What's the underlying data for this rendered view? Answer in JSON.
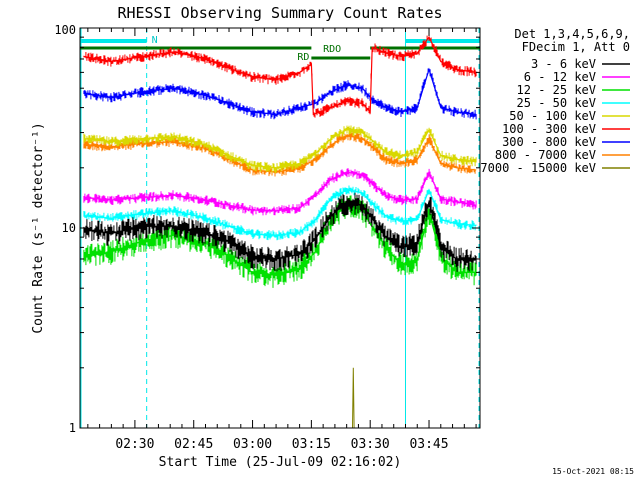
{
  "chart_data": {
    "type": "line",
    "title": "RHESSI Observing Summary Count Rates",
    "xlabel": "Start Time (25-Jul-09 02:16:02)",
    "ylabel": "Count Rate (s⁻¹ detector⁻¹)",
    "y_scale": "log",
    "ylim": [
      1,
      100
    ],
    "xlim_minutes": [
      0,
      102
    ],
    "x_ticks": [
      "02:30",
      "02:45",
      "03:00",
      "03:15",
      "03:30",
      "03:45"
    ],
    "x_tick_minutes": [
      14,
      29,
      44,
      59,
      74,
      89
    ],
    "y_ticks": [
      "1",
      "10",
      "100"
    ],
    "y_tick_values": [
      1,
      10,
      100
    ],
    "grid": false,
    "legend": {
      "placement": "right",
      "header": [
        "Det 1,3,4,5,6,9,",
        "FDecim 1, Att 0"
      ],
      "entries": [
        {
          "label": "3 - 6 keV",
          "color": "#000000"
        },
        {
          "label": "6 - 12 keV",
          "color": "#ff00ff"
        },
        {
          "label": "12 - 25 keV",
          "color": "#00e000"
        },
        {
          "label": "25 - 50 keV",
          "color": "#00ffff"
        },
        {
          "label": "50 - 100 keV",
          "color": "#d8d800"
        },
        {
          "label": "100 - 300 keV",
          "color": "#ff0000"
        },
        {
          "label": "300 - 800 keV",
          "color": "#0000ff"
        },
        {
          "label": "800 - 7000 keV",
          "color": "#ff8000"
        },
        {
          "label": "7000 - 15000 keV",
          "color": "#808000"
        }
      ]
    },
    "series": [
      {
        "name": "3 - 6 keV",
        "color": "#000000",
        "x": [
          1,
          8,
          16,
          24,
          32,
          38,
          44,
          50,
          56,
          60,
          64,
          68,
          72,
          74,
          78,
          82,
          86,
          89,
          92,
          96,
          101
        ],
        "y": [
          9.8,
          9.4,
          10.2,
          10.2,
          9.4,
          8.6,
          7.2,
          7,
          7.4,
          8.8,
          11.5,
          13.5,
          13,
          11.5,
          9,
          8,
          8.5,
          13.5,
          8,
          7,
          7
        ]
      },
      {
        "name": "6 - 12 keV",
        "color": "#ff00ff",
        "x": [
          1,
          8,
          16,
          24,
          32,
          38,
          44,
          50,
          56,
          60,
          64,
          68,
          72,
          74,
          78,
          82,
          86,
          89,
          92,
          96,
          101
        ],
        "y": [
          14.2,
          13.8,
          14.2,
          14.6,
          13.8,
          13,
          12.3,
          12.2,
          12.6,
          14.5,
          17.5,
          19,
          18.5,
          17,
          14.5,
          13.8,
          14,
          19,
          14,
          13.5,
          13
        ]
      },
      {
        "name": "12 - 25 keV",
        "color": "#00e000",
        "x": [
          1,
          8,
          16,
          24,
          32,
          38,
          44,
          50,
          56,
          60,
          64,
          68,
          72,
          74,
          78,
          82,
          86,
          89,
          92,
          96,
          101
        ],
        "y": [
          7.2,
          7.6,
          8.6,
          9.2,
          8.4,
          7.2,
          6,
          5.8,
          6.2,
          7.6,
          11,
          13,
          12.5,
          10.5,
          8,
          6.5,
          7,
          12,
          7.2,
          6,
          6
        ]
      },
      {
        "name": "25 - 50 keV",
        "color": "#00ffff",
        "x": [
          1,
          8,
          16,
          24,
          32,
          38,
          44,
          50,
          56,
          60,
          64,
          68,
          72,
          74,
          78,
          82,
          86,
          89,
          92,
          96,
          101
        ],
        "y": [
          11.5,
          11.2,
          11.8,
          12.2,
          11.2,
          10.2,
          9.3,
          9.2,
          9.5,
          11,
          14,
          15.5,
          15,
          13.5,
          11.5,
          10.8,
          11,
          15.5,
          11,
          10.5,
          10.3
        ]
      },
      {
        "name": "50 - 100 keV",
        "color": "#d8d800",
        "x": [
          1,
          8,
          16,
          24,
          32,
          38,
          44,
          50,
          56,
          60,
          64,
          68,
          72,
          74,
          78,
          82,
          86,
          89,
          92,
          96,
          101
        ],
        "y": [
          28,
          27,
          28,
          28.5,
          26,
          23,
          20.5,
          20,
          21,
          23.5,
          28,
          31,
          30,
          28,
          24,
          23,
          24,
          31,
          23,
          22,
          21.5
        ]
      },
      {
        "name": "100 - 300 keV",
        "color": "#ff0000",
        "x": [
          1,
          8,
          16,
          24,
          32,
          38,
          44,
          50,
          56,
          59,
          59.5,
          64,
          68,
          72,
          74,
          74.5,
          78,
          82,
          86,
          89,
          92,
          96,
          101
        ],
        "y": [
          72,
          68,
          72,
          76,
          70,
          63,
          57,
          55,
          60,
          66,
          37,
          40,
          43,
          42,
          38,
          80,
          75,
          72,
          75,
          90,
          68,
          62,
          60
        ]
      },
      {
        "name": "300 - 800 keV",
        "color": "#0000ff",
        "x": [
          1,
          8,
          16,
          24,
          32,
          38,
          44,
          50,
          56,
          60,
          64,
          68,
          72,
          74,
          78,
          82,
          86,
          89,
          92,
          96,
          101
        ],
        "y": [
          47,
          45,
          48,
          50,
          46,
          42,
          38,
          37,
          40,
          42,
          48,
          52,
          50,
          45,
          40,
          38,
          40,
          62,
          40,
          38,
          37
        ]
      },
      {
        "name": "800 - 7000 keV",
        "color": "#ff8000",
        "x": [
          1,
          8,
          16,
          24,
          32,
          38,
          44,
          50,
          56,
          60,
          64,
          68,
          72,
          74,
          78,
          82,
          86,
          89,
          92,
          96,
          101
        ],
        "y": [
          26,
          25.5,
          26.5,
          27,
          25,
          22,
          19.5,
          19,
          20,
          22,
          26,
          29,
          28,
          26,
          22,
          21,
          22,
          28,
          21,
          20,
          19.5
        ]
      },
      {
        "name": "7000 - 15000 keV",
        "color": "#808000",
        "x": [
          69.5,
          69.7,
          69.9
        ],
        "y": [
          1,
          2,
          1
        ]
      }
    ],
    "annotations": {
      "attenuator_label": "N",
      "attenuator_segments": [
        [
          0,
          17
        ],
        [
          83,
          102
        ]
      ],
      "rdo_labels": [
        "RD",
        "RDO"
      ],
      "vertical_lines_solid": [
        0,
        83
      ],
      "vertical_lines_dashed": [
        17,
        102
      ]
    }
  },
  "footer": {
    "timestamp": "15-Oct-2021 08:15"
  }
}
